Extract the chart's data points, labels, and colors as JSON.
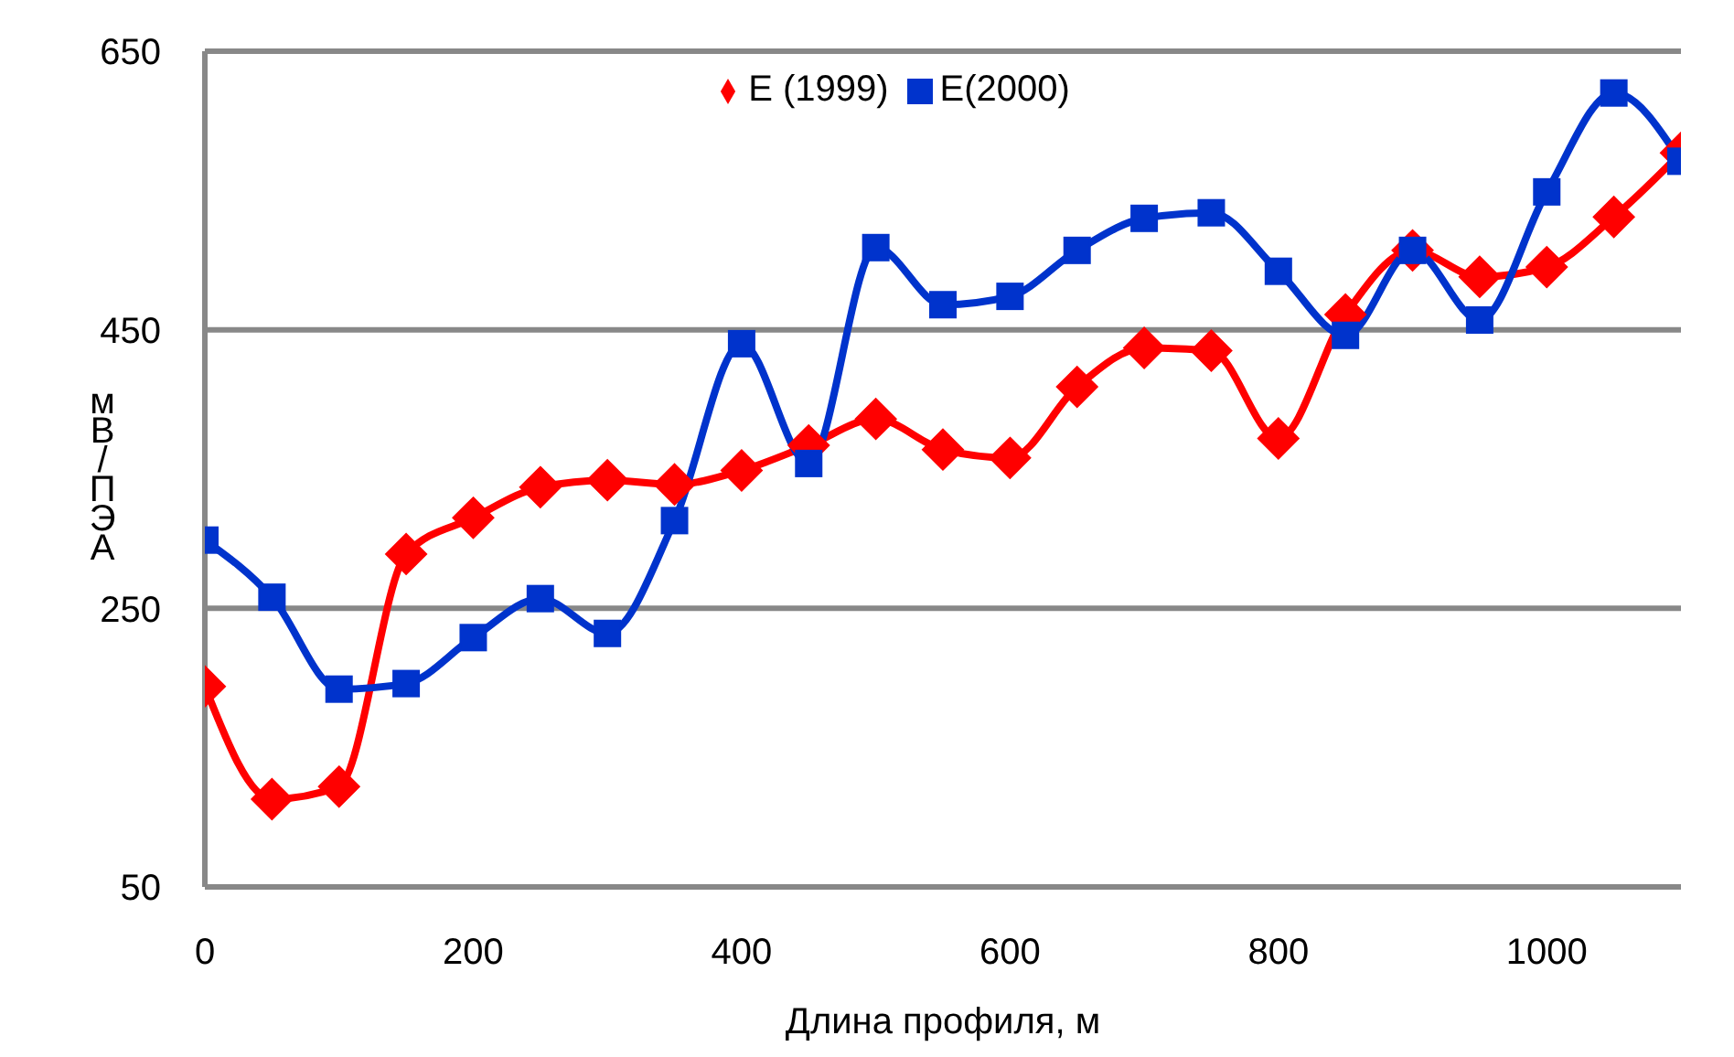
{
  "chart_data": {
    "type": "line",
    "xlabel": "Длина профиля, м",
    "ylabel": "мВ/ПЭА",
    "x": [
      0,
      50,
      100,
      150,
      200,
      250,
      300,
      350,
      400,
      450,
      500,
      550,
      600,
      650,
      700,
      750,
      800,
      850,
      900,
      950,
      1000,
      1050,
      1100
    ],
    "series": [
      {
        "name": "E (1999)",
        "color": "#ff0000",
        "marker": "diamond",
        "values": [
          194,
          113,
          122,
          289,
          315,
          337,
          342,
          339,
          349,
          367,
          386,
          364,
          358,
          409,
          437,
          435,
          372,
          461,
          507,
          488,
          495,
          531,
          577
        ]
      },
      {
        "name": "E(2000)",
        "color": "#0033cc",
        "marker": "square",
        "values": [
          299,
          258,
          192,
          196,
          229,
          257,
          232,
          313,
          440,
          354,
          509,
          468,
          474,
          507,
          530,
          534,
          492,
          446,
          507,
          457,
          549,
          620,
          571
        ]
      }
    ],
    "xlim": [
      0,
      1100
    ],
    "xticks": [
      0,
      200,
      400,
      600,
      800,
      1000
    ],
    "ylim": [
      50,
      650
    ],
    "yticks": [
      50,
      250,
      450,
      650
    ],
    "grid": "y",
    "legend": "top"
  }
}
